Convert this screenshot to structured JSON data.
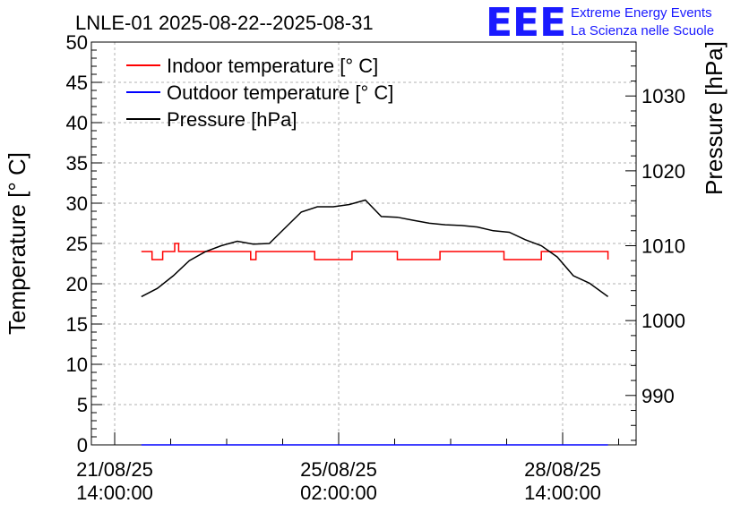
{
  "logo": {
    "mark": "EEE",
    "line1": "Extreme Energy Events",
    "line2": "La Scienza nelle Scuole"
  },
  "chart_data": {
    "type": "line",
    "title": "LNLE-01 2025-08-22--2025-08-31",
    "ylabel": "Temperature [° C]",
    "y2label": "Pressure [hPa]",
    "ylim": [
      0,
      50
    ],
    "y2lim": [
      983.4,
      1037.2
    ],
    "y_ticks": [
      "0",
      "5",
      "10",
      "15",
      "20",
      "25",
      "30",
      "35",
      "40",
      "45",
      "50"
    ],
    "y2_ticks": [
      "990",
      "1000",
      "1010",
      "1020",
      "1030"
    ],
    "x_ticks": [
      {
        "date": "21/08/25",
        "time": "14:00:00"
      },
      {
        "date": "25/08/25",
        "time": "02:00:00"
      },
      {
        "date": "28/08/25",
        "time": "14:00:00"
      }
    ],
    "grid": true,
    "legend_placement": "top-left",
    "colors": {
      "indoor": "#ff0000",
      "outdoor": "#0000ff",
      "pressure": "#000000"
    },
    "series": [
      {
        "name": "Indoor temperature [° C]",
        "axis": "left",
        "x": [
          "2025-08-22 00:00",
          "2025-08-22 03:00",
          "2025-08-22 04:00",
          "2025-08-22 07:00",
          "2025-08-22 08:00",
          "2025-08-22 12:00",
          "2025-08-22 12:30",
          "2025-08-22 14:00",
          "2025-08-23 16:00",
          "2025-08-23 17:00",
          "2025-08-23 19:00",
          "2025-08-24 14:00",
          "2025-08-24 17:00",
          "2025-08-25 05:00",
          "2025-08-25 07:00",
          "2025-08-25 22:00",
          "2025-08-26 00:00",
          "2025-08-26 14:00",
          "2025-08-26 16:00",
          "2025-08-27 15:00",
          "2025-08-27 16:00",
          "2025-08-28 05:00",
          "2025-08-28 06:00",
          "2025-08-29 07:00"
        ],
        "values": [
          24,
          24,
          23,
          23,
          24,
          24,
          25,
          24,
          24,
          23,
          24,
          24,
          23,
          23,
          24,
          24,
          23,
          23,
          24,
          24,
          23,
          23,
          24,
          23
        ]
      },
      {
        "name": "Outdoor temperature [° C]",
        "axis": "left",
        "x": [
          "2025-08-22 00:00",
          "2025-08-29 07:00"
        ],
        "values": [
          0,
          0
        ]
      },
      {
        "name": "Pressure [hPa]",
        "axis": "right",
        "x": [
          "2025-08-22 00:00",
          "2025-08-22 06:00",
          "2025-08-22 12:00",
          "2025-08-22 18:00",
          "2025-08-23 00:00",
          "2025-08-23 06:00",
          "2025-08-23 12:00",
          "2025-08-23 18:00",
          "2025-08-24 00:00",
          "2025-08-24 06:00",
          "2025-08-24 12:00",
          "2025-08-24 18:00",
          "2025-08-25 00:00",
          "2025-08-25 06:00",
          "2025-08-25 12:00",
          "2025-08-25 18:00",
          "2025-08-26 00:00",
          "2025-08-26 06:00",
          "2025-08-26 12:00",
          "2025-08-26 18:00",
          "2025-08-27 00:00",
          "2025-08-27 06:00",
          "2025-08-27 12:00",
          "2025-08-27 18:00",
          "2025-08-28 00:00",
          "2025-08-28 06:00",
          "2025-08-28 12:00",
          "2025-08-28 18:00",
          "2025-08-29 00:00",
          "2025-08-29 07:00"
        ],
        "values": [
          1003.2,
          1004.3,
          1006.0,
          1008.0,
          1009.2,
          1010.0,
          1010.6,
          1010.2,
          1010.3,
          1012.4,
          1014.5,
          1015.2,
          1015.2,
          1015.5,
          1016.1,
          1013.9,
          1013.8,
          1013.4,
          1013.0,
          1012.8,
          1012.7,
          1012.5,
          1012.0,
          1011.8,
          1010.8,
          1010.0,
          1008.5,
          1006.0,
          1005.0,
          1003.2
        ]
      }
    ]
  }
}
